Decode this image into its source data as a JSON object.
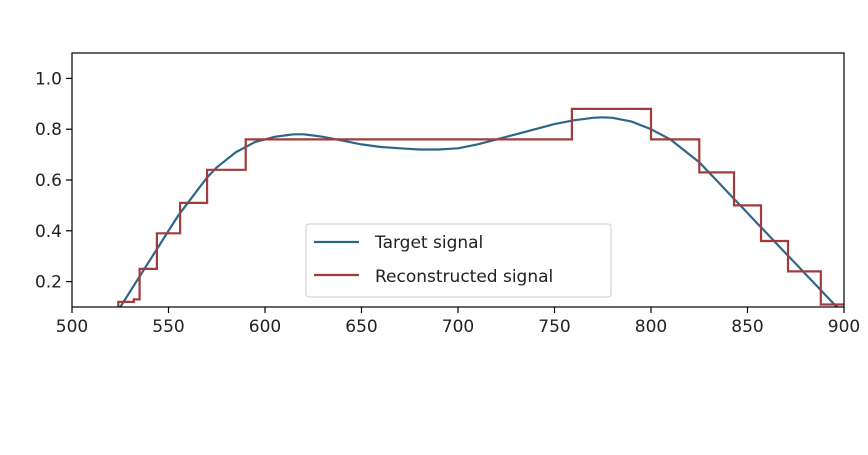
{
  "chart_data": {
    "type": "line",
    "title": "",
    "xlabel": "",
    "ylabel": "",
    "xlim": [
      500,
      900
    ],
    "ylim": [
      0.1,
      1.1
    ],
    "x_ticks": [
      500,
      550,
      600,
      650,
      700,
      750,
      800,
      850,
      900
    ],
    "x_tick_labels": [
      "500",
      "550",
      "600",
      "650",
      "700",
      "750",
      "800",
      "850",
      "900"
    ],
    "y_ticks": [
      0.2,
      0.4,
      0.6,
      0.8,
      1.0
    ],
    "y_tick_labels": [
      "0.2",
      "0.4",
      "0.6",
      "0.8",
      "1.0"
    ],
    "grid": false,
    "legend_position": "lower center",
    "series": [
      {
        "name": "Target signal",
        "color": "#2e6688",
        "style": "line",
        "x": [
          525,
          530,
          535,
          540,
          545,
          550,
          555,
          560,
          565,
          570,
          575,
          580,
          585,
          590,
          595,
          600,
          605,
          610,
          615,
          620,
          625,
          630,
          640,
          650,
          660,
          670,
          680,
          690,
          700,
          710,
          720,
          730,
          740,
          750,
          760,
          770,
          775,
          780,
          790,
          800,
          805,
          810,
          815,
          820,
          825,
          830,
          835,
          840,
          845,
          850,
          855,
          860,
          865,
          870,
          875,
          880,
          885,
          890,
          895,
          898
        ],
        "y": [
          0.1,
          0.16,
          0.22,
          0.28,
          0.34,
          0.4,
          0.46,
          0.51,
          0.56,
          0.61,
          0.65,
          0.68,
          0.71,
          0.73,
          0.75,
          0.76,
          0.77,
          0.775,
          0.78,
          0.78,
          0.775,
          0.77,
          0.755,
          0.74,
          0.73,
          0.725,
          0.72,
          0.72,
          0.725,
          0.74,
          0.76,
          0.78,
          0.8,
          0.82,
          0.835,
          0.845,
          0.847,
          0.845,
          0.83,
          0.8,
          0.78,
          0.76,
          0.73,
          0.7,
          0.67,
          0.63,
          0.59,
          0.55,
          0.51,
          0.47,
          0.43,
          0.39,
          0.35,
          0.31,
          0.27,
          0.23,
          0.19,
          0.15,
          0.11,
          0.09
        ]
      },
      {
        "name": "Reconstructed signal",
        "color": "#a23b3b",
        "style": "step",
        "steps": [
          {
            "x0": 524,
            "x1": 532,
            "y": 0.12
          },
          {
            "x0": 532,
            "x1": 535,
            "y": 0.13
          },
          {
            "x0": 535,
            "x1": 544,
            "y": 0.25
          },
          {
            "x0": 544,
            "x1": 556,
            "y": 0.39
          },
          {
            "x0": 556,
            "x1": 570,
            "y": 0.51
          },
          {
            "x0": 570,
            "x1": 590,
            "y": 0.64
          },
          {
            "x0": 590,
            "x1": 759,
            "y": 0.76
          },
          {
            "x0": 759,
            "x1": 800,
            "y": 0.88
          },
          {
            "x0": 800,
            "x1": 825,
            "y": 0.76
          },
          {
            "x0": 825,
            "x1": 843,
            "y": 0.63
          },
          {
            "x0": 843,
            "x1": 857,
            "y": 0.5
          },
          {
            "x0": 857,
            "x1": 871,
            "y": 0.36
          },
          {
            "x0": 871,
            "x1": 888,
            "y": 0.24
          },
          {
            "x0": 888,
            "x1": 900,
            "y": 0.11
          }
        ]
      }
    ]
  }
}
